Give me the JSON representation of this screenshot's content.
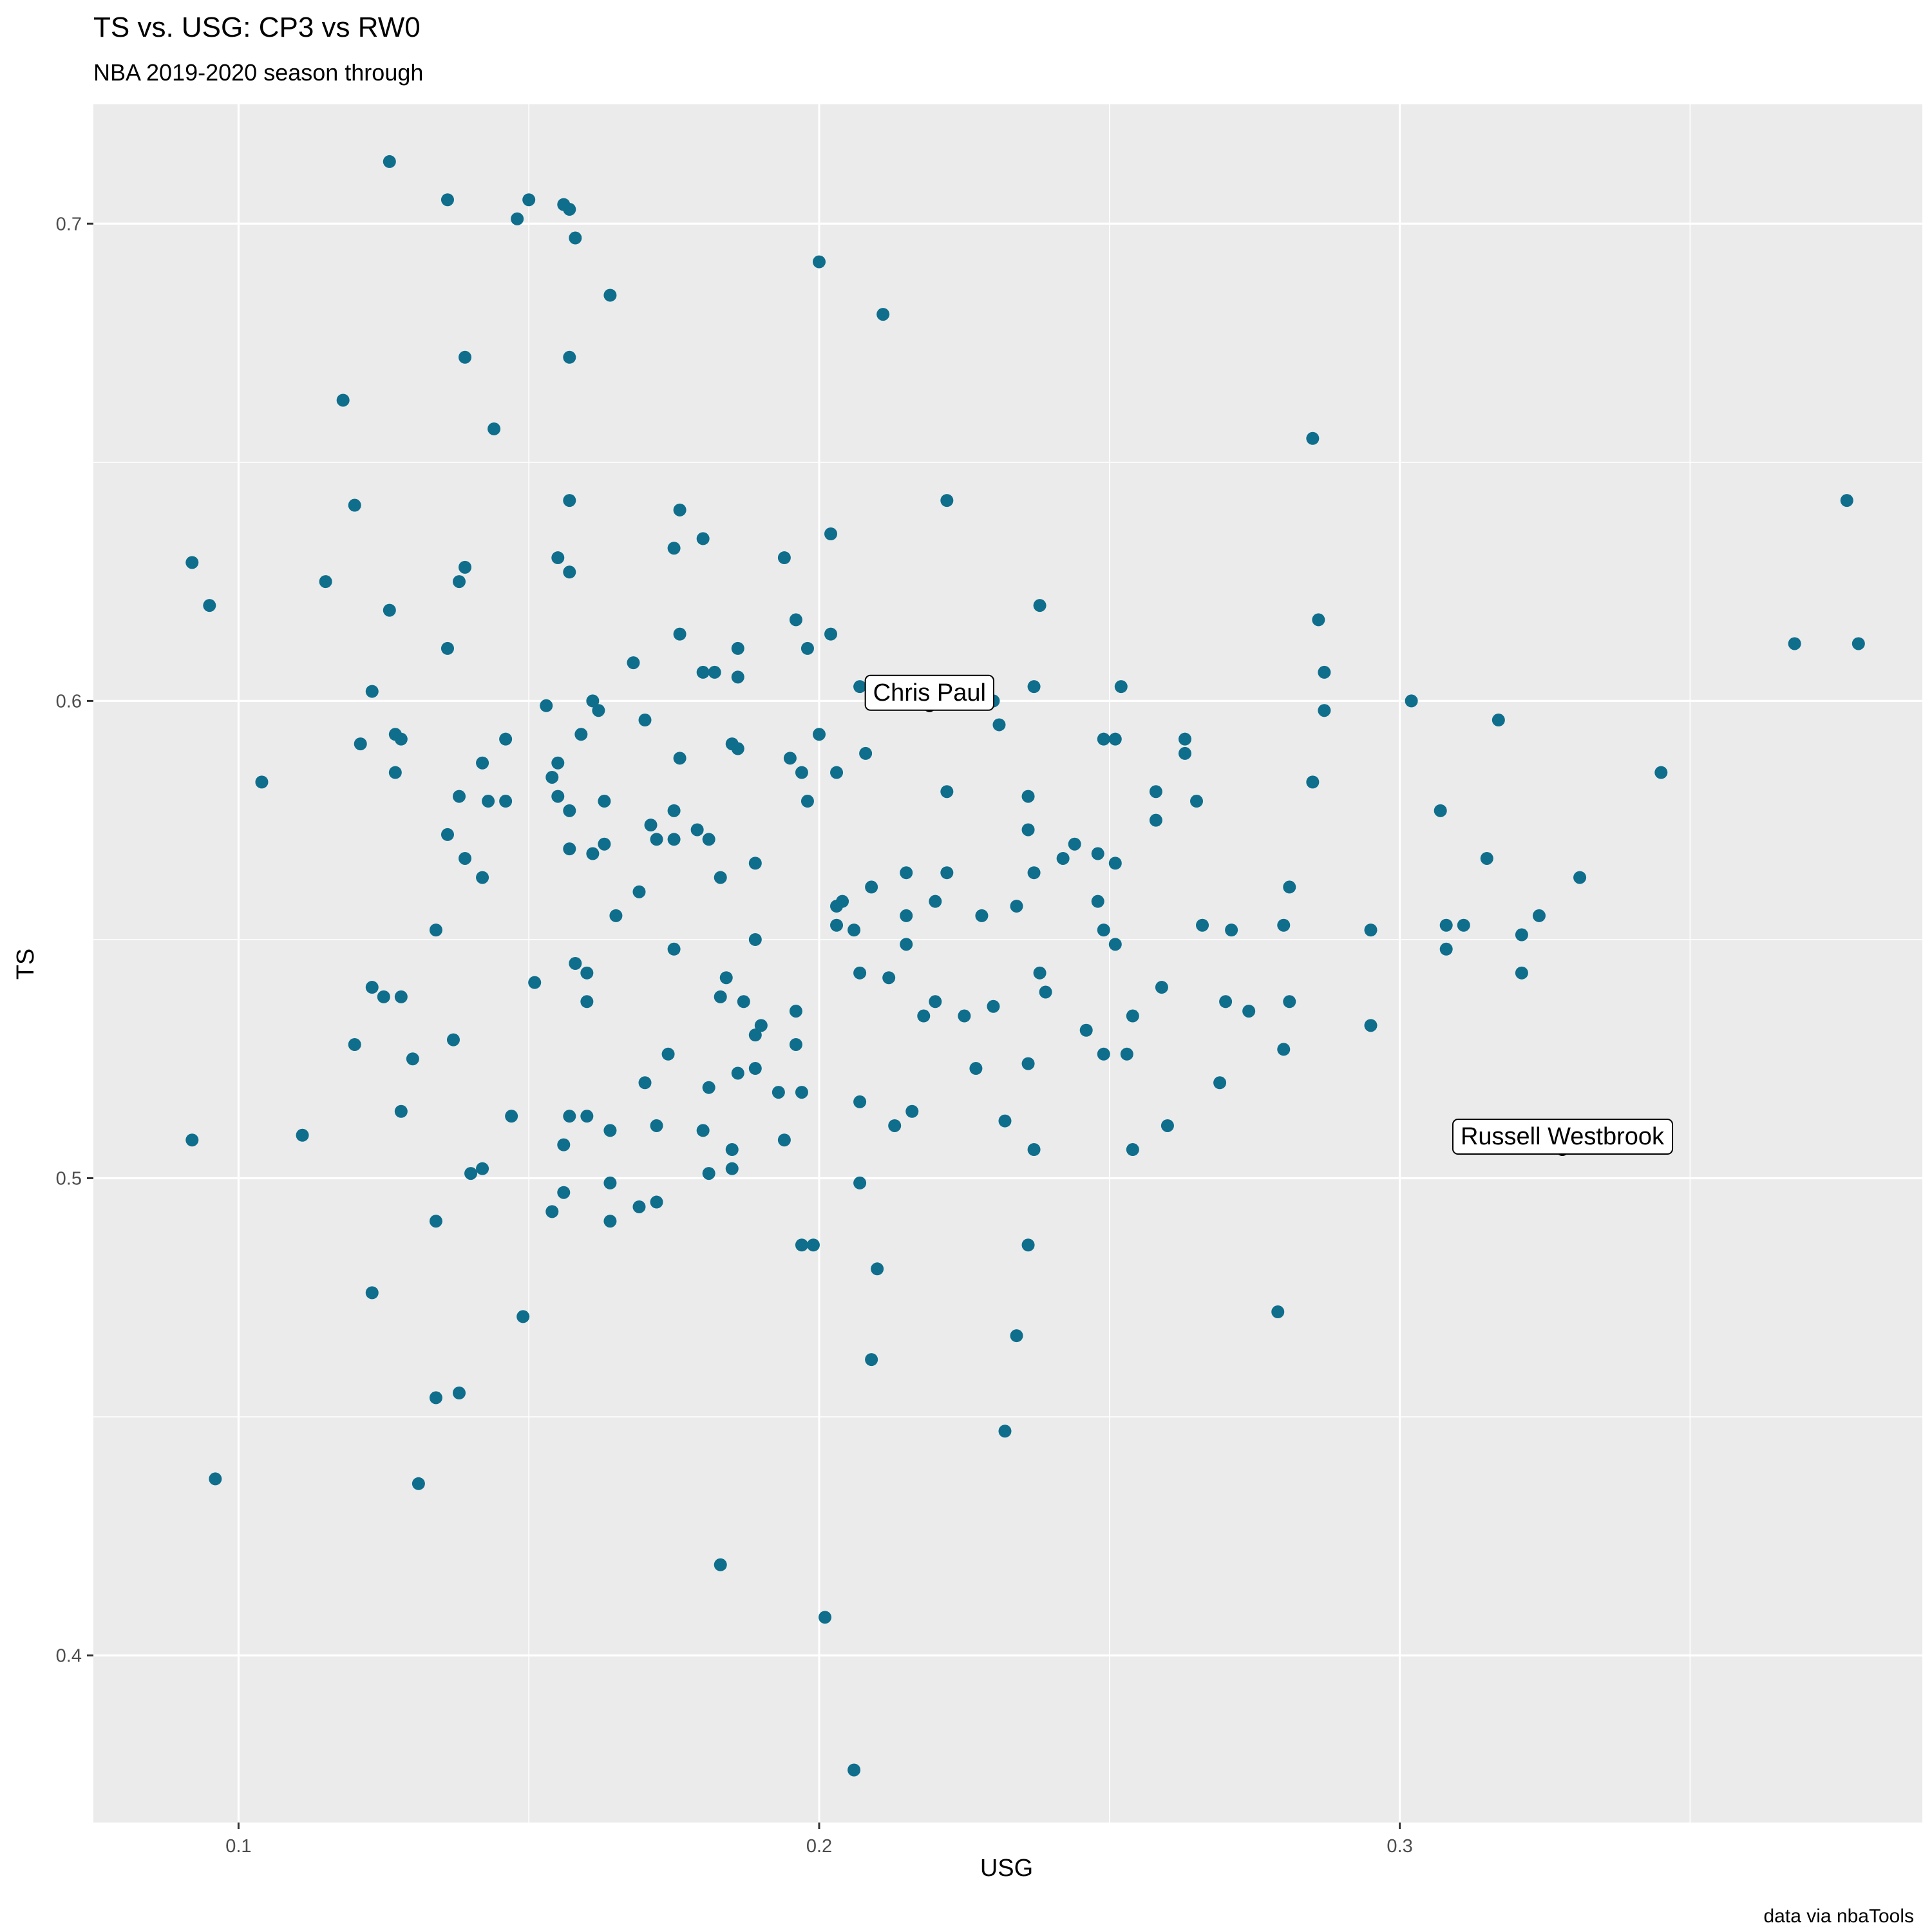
{
  "chart_data": {
    "type": "scatter",
    "title": "TS vs. USG: CP3 vs RW0",
    "subtitle": "NBA 2019-2020 season through",
    "xlabel": "USG",
    "ylabel": "TS",
    "caption": "data via nbaTools",
    "xlim": [
      0.075,
      0.39
    ],
    "ylim": [
      0.365,
      0.725
    ],
    "x_ticks": [
      0.1,
      0.2,
      0.3
    ],
    "x_tick_labels": [
      "0.1",
      "0.2",
      "0.3"
    ],
    "y_ticks": [
      0.4,
      0.5,
      0.6,
      0.7
    ],
    "y_tick_labels": [
      "0.4",
      "0.5",
      "0.6",
      "0.7"
    ],
    "grid": true,
    "point_color": "#0E6E8C",
    "highlight_color": "#000000",
    "background": "#EBEBEB",
    "highlights": [
      {
        "name": "Chris Paul",
        "x": 0.219,
        "y": 0.599
      },
      {
        "name": "Russell Westbrook",
        "x": 0.328,
        "y": 0.506
      }
    ],
    "points": [
      [
        0.126,
        0.713
      ],
      [
        0.136,
        0.705
      ],
      [
        0.15,
        0.705
      ],
      [
        0.156,
        0.704
      ],
      [
        0.157,
        0.703
      ],
      [
        0.148,
        0.701
      ],
      [
        0.158,
        0.697
      ],
      [
        0.2,
        0.692
      ],
      [
        0.164,
        0.685
      ],
      [
        0.211,
        0.681
      ],
      [
        0.139,
        0.672
      ],
      [
        0.157,
        0.672
      ],
      [
        0.118,
        0.663
      ],
      [
        0.144,
        0.657
      ],
      [
        0.285,
        0.655
      ],
      [
        0.157,
        0.642
      ],
      [
        0.222,
        0.642
      ],
      [
        0.12,
        0.641
      ],
      [
        0.176,
        0.64
      ],
      [
        0.377,
        0.642
      ],
      [
        0.202,
        0.635
      ],
      [
        0.18,
        0.634
      ],
      [
        0.175,
        0.632
      ],
      [
        0.155,
        0.63
      ],
      [
        0.194,
        0.63
      ],
      [
        0.092,
        0.629
      ],
      [
        0.139,
        0.628
      ],
      [
        0.157,
        0.627
      ],
      [
        0.115,
        0.625
      ],
      [
        0.138,
        0.625
      ],
      [
        0.095,
        0.62
      ],
      [
        0.126,
        0.619
      ],
      [
        0.238,
        0.62
      ],
      [
        0.196,
        0.617
      ],
      [
        0.286,
        0.617
      ],
      [
        0.176,
        0.614
      ],
      [
        0.202,
        0.614
      ],
      [
        0.368,
        0.612
      ],
      [
        0.379,
        0.612
      ],
      [
        0.136,
        0.611
      ],
      [
        0.198,
        0.611
      ],
      [
        0.186,
        0.611
      ],
      [
        0.168,
        0.608
      ],
      [
        0.18,
        0.606
      ],
      [
        0.182,
        0.606
      ],
      [
        0.287,
        0.606
      ],
      [
        0.186,
        0.605
      ],
      [
        0.207,
        0.603
      ],
      [
        0.237,
        0.603
      ],
      [
        0.252,
        0.603
      ],
      [
        0.123,
        0.602
      ],
      [
        0.161,
        0.6
      ],
      [
        0.23,
        0.6
      ],
      [
        0.302,
        0.6
      ],
      [
        0.153,
        0.599
      ],
      [
        0.162,
        0.598
      ],
      [
        0.287,
        0.598
      ],
      [
        0.17,
        0.596
      ],
      [
        0.317,
        0.596
      ],
      [
        0.231,
        0.595
      ],
      [
        0.127,
        0.593
      ],
      [
        0.128,
        0.592
      ],
      [
        0.159,
        0.593
      ],
      [
        0.2,
        0.593
      ],
      [
        0.121,
        0.591
      ],
      [
        0.146,
        0.592
      ],
      [
        0.185,
        0.591
      ],
      [
        0.186,
        0.59
      ],
      [
        0.249,
        0.592
      ],
      [
        0.251,
        0.592
      ],
      [
        0.263,
        0.592
      ],
      [
        0.208,
        0.589
      ],
      [
        0.176,
        0.588
      ],
      [
        0.142,
        0.587
      ],
      [
        0.155,
        0.587
      ],
      [
        0.195,
        0.588
      ],
      [
        0.263,
        0.589
      ],
      [
        0.127,
        0.585
      ],
      [
        0.197,
        0.585
      ],
      [
        0.203,
        0.585
      ],
      [
        0.345,
        0.585
      ],
      [
        0.104,
        0.583
      ],
      [
        0.154,
        0.584
      ],
      [
        0.285,
        0.583
      ],
      [
        0.138,
        0.58
      ],
      [
        0.143,
        0.579
      ],
      [
        0.146,
        0.579
      ],
      [
        0.155,
        0.58
      ],
      [
        0.163,
        0.579
      ],
      [
        0.198,
        0.579
      ],
      [
        0.222,
        0.581
      ],
      [
        0.236,
        0.58
      ],
      [
        0.258,
        0.581
      ],
      [
        0.265,
        0.579
      ],
      [
        0.157,
        0.577
      ],
      [
        0.175,
        0.577
      ],
      [
        0.307,
        0.577
      ],
      [
        0.258,
        0.575
      ],
      [
        0.171,
        0.574
      ],
      [
        0.179,
        0.573
      ],
      [
        0.236,
        0.573
      ],
      [
        0.136,
        0.572
      ],
      [
        0.172,
        0.571
      ],
      [
        0.175,
        0.571
      ],
      [
        0.181,
        0.571
      ],
      [
        0.163,
        0.57
      ],
      [
        0.244,
        0.57
      ],
      [
        0.157,
        0.569
      ],
      [
        0.161,
        0.568
      ],
      [
        0.248,
        0.568
      ],
      [
        0.139,
        0.567
      ],
      [
        0.189,
        0.566
      ],
      [
        0.242,
        0.567
      ],
      [
        0.251,
        0.566
      ],
      [
        0.315,
        0.567
      ],
      [
        0.142,
        0.563
      ],
      [
        0.183,
        0.563
      ],
      [
        0.215,
        0.564
      ],
      [
        0.222,
        0.564
      ],
      [
        0.237,
        0.564
      ],
      [
        0.331,
        0.563
      ],
      [
        0.209,
        0.561
      ],
      [
        0.281,
        0.561
      ],
      [
        0.169,
        0.56
      ],
      [
        0.22,
        0.558
      ],
      [
        0.248,
        0.558
      ],
      [
        0.203,
        0.557
      ],
      [
        0.204,
        0.558
      ],
      [
        0.234,
        0.557
      ],
      [
        0.165,
        0.555
      ],
      [
        0.215,
        0.555
      ],
      [
        0.228,
        0.555
      ],
      [
        0.324,
        0.555
      ],
      [
        0.203,
        0.553
      ],
      [
        0.206,
        0.552
      ],
      [
        0.249,
        0.552
      ],
      [
        0.266,
        0.553
      ],
      [
        0.271,
        0.552
      ],
      [
        0.28,
        0.553
      ],
      [
        0.295,
        0.552
      ],
      [
        0.308,
        0.553
      ],
      [
        0.311,
        0.553
      ],
      [
        0.321,
        0.551
      ],
      [
        0.134,
        0.552
      ],
      [
        0.189,
        0.55
      ],
      [
        0.215,
        0.549
      ],
      [
        0.251,
        0.549
      ],
      [
        0.175,
        0.548
      ],
      [
        0.308,
        0.548
      ],
      [
        0.158,
        0.545
      ],
      [
        0.16,
        0.543
      ],
      [
        0.207,
        0.543
      ],
      [
        0.238,
        0.543
      ],
      [
        0.321,
        0.543
      ],
      [
        0.184,
        0.542
      ],
      [
        0.212,
        0.542
      ],
      [
        0.151,
        0.541
      ],
      [
        0.123,
        0.54
      ],
      [
        0.259,
        0.54
      ],
      [
        0.125,
        0.538
      ],
      [
        0.128,
        0.538
      ],
      [
        0.239,
        0.539
      ],
      [
        0.183,
        0.538
      ],
      [
        0.16,
        0.537
      ],
      [
        0.187,
        0.537
      ],
      [
        0.22,
        0.537
      ],
      [
        0.27,
        0.537
      ],
      [
        0.281,
        0.537
      ],
      [
        0.23,
        0.536
      ],
      [
        0.196,
        0.535
      ],
      [
        0.218,
        0.534
      ],
      [
        0.225,
        0.534
      ],
      [
        0.254,
        0.534
      ],
      [
        0.274,
        0.535
      ],
      [
        0.19,
        0.532
      ],
      [
        0.295,
        0.532
      ],
      [
        0.189,
        0.53
      ],
      [
        0.196,
        0.528
      ],
      [
        0.246,
        0.531
      ],
      [
        0.12,
        0.528
      ],
      [
        0.137,
        0.529
      ],
      [
        0.13,
        0.525
      ],
      [
        0.174,
        0.526
      ],
      [
        0.249,
        0.526
      ],
      [
        0.253,
        0.526
      ],
      [
        0.28,
        0.527
      ],
      [
        0.236,
        0.524
      ],
      [
        0.189,
        0.523
      ],
      [
        0.186,
        0.522
      ],
      [
        0.227,
        0.523
      ],
      [
        0.17,
        0.52
      ],
      [
        0.181,
        0.519
      ],
      [
        0.269,
        0.52
      ],
      [
        0.193,
        0.518
      ],
      [
        0.197,
        0.518
      ],
      [
        0.207,
        0.516
      ],
      [
        0.128,
        0.514
      ],
      [
        0.216,
        0.514
      ],
      [
        0.147,
        0.513
      ],
      [
        0.157,
        0.513
      ],
      [
        0.16,
        0.513
      ],
      [
        0.26,
        0.511
      ],
      [
        0.172,
        0.511
      ],
      [
        0.213,
        0.511
      ],
      [
        0.232,
        0.512
      ],
      [
        0.164,
        0.51
      ],
      [
        0.18,
        0.51
      ],
      [
        0.111,
        0.509
      ],
      [
        0.092,
        0.508
      ],
      [
        0.194,
        0.508
      ],
      [
        0.156,
        0.507
      ],
      [
        0.185,
        0.506
      ],
      [
        0.237,
        0.506
      ],
      [
        0.254,
        0.506
      ],
      [
        0.142,
        0.502
      ],
      [
        0.14,
        0.501
      ],
      [
        0.181,
        0.501
      ],
      [
        0.185,
        0.502
      ],
      [
        0.164,
        0.499
      ],
      [
        0.207,
        0.499
      ],
      [
        0.156,
        0.497
      ],
      [
        0.172,
        0.495
      ],
      [
        0.169,
        0.494
      ],
      [
        0.154,
        0.493
      ],
      [
        0.134,
        0.491
      ],
      [
        0.164,
        0.491
      ],
      [
        0.197,
        0.486
      ],
      [
        0.199,
        0.486
      ],
      [
        0.236,
        0.486
      ],
      [
        0.21,
        0.481
      ],
      [
        0.123,
        0.476
      ],
      [
        0.149,
        0.471
      ],
      [
        0.279,
        0.472
      ],
      [
        0.234,
        0.467
      ],
      [
        0.209,
        0.462
      ],
      [
        0.138,
        0.455
      ],
      [
        0.134,
        0.454
      ],
      [
        0.232,
        0.447
      ],
      [
        0.096,
        0.437
      ],
      [
        0.131,
        0.436
      ],
      [
        0.183,
        0.419
      ],
      [
        0.201,
        0.408
      ],
      [
        0.206,
        0.376
      ]
    ]
  }
}
